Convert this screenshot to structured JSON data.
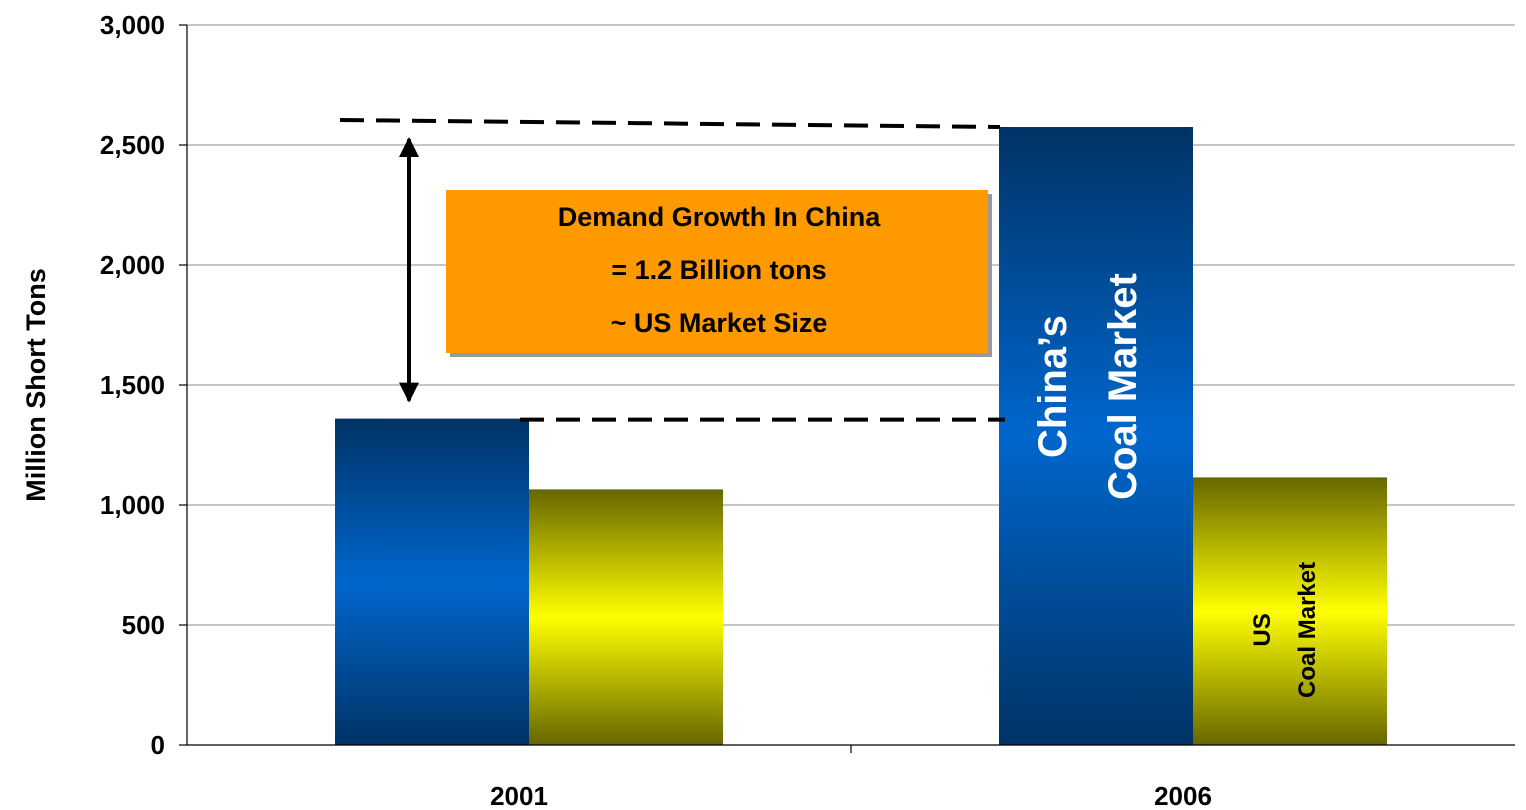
{
  "chart_data": {
    "type": "bar",
    "categories": [
      "2001",
      "2006"
    ],
    "series": [
      {
        "color": "#0066cc",
        "values": [
          1360,
          2575
        ]
      },
      {
        "color": "#ffff00",
        "values": [
          1065,
          1115
        ]
      }
    ],
    "ylabel": "Million Short Tons",
    "xlabel": "",
    "ylim": [
      0,
      3000
    ],
    "yticks": [
      0,
      500,
      1000,
      1500,
      2000,
      2500,
      3000
    ],
    "ytick_labels": [
      "0",
      "500",
      "1,000",
      "1,500",
      "2,000",
      "2,500",
      "3,000"
    ],
    "grid": true,
    "bar_labels": {
      "china_2006": [
        "China’s",
        "Coal Market"
      ],
      "us_2006": [
        "US",
        "Coal Market"
      ]
    },
    "annotation": {
      "lines": [
        "Demand Growth In China",
        "= 1.2 Billion tons",
        "~ US Market Size"
      ],
      "fill_color": "#ff9900",
      "arrow_from": 1360,
      "arrow_to": 2600
    }
  }
}
